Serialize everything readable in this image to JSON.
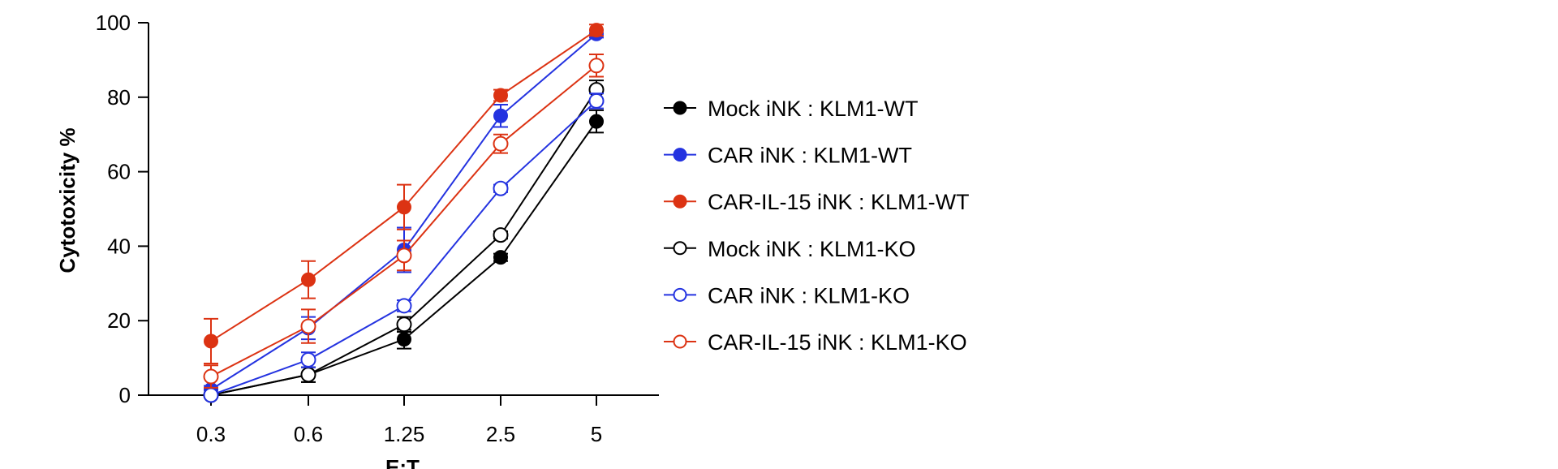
{
  "chart_data": {
    "type": "line",
    "xlabel": "E:T",
    "ylabel": "Cytotoxicity %",
    "categories": [
      "0.3",
      "0.6",
      "1.25",
      "2.5",
      "5"
    ],
    "ylim": [
      0,
      100
    ],
    "yticks": [
      0,
      20,
      40,
      60,
      80,
      100
    ],
    "grid": false,
    "legend_position": "right",
    "series": [
      {
        "name": "Mock iNK : KLM1-WT",
        "color": "#000000",
        "filled": true,
        "values": [
          0,
          5.5,
          15,
          37,
          73.5
        ],
        "errors": [
          0.5,
          2,
          2.5,
          1,
          3
        ]
      },
      {
        "name": "CAR iNK : KLM1-WT",
        "color": "#2433e0",
        "filled": true,
        "values": [
          1.5,
          18,
          39,
          75,
          97
        ],
        "errors": [
          1,
          3,
          6,
          3,
          1
        ]
      },
      {
        "name": "CAR-IL-15 iNK : KLM1-WT",
        "color": "#dc3313",
        "filled": true,
        "values": [
          14.5,
          31,
          50.5,
          80.5,
          98
        ],
        "errors": [
          6,
          5,
          6,
          1.5,
          1.5
        ]
      },
      {
        "name": "Mock iNK : KLM1-KO",
        "color": "#000000",
        "filled": false,
        "values": [
          0,
          5.5,
          19,
          43,
          82
        ],
        "errors": [
          0.5,
          2,
          2,
          1,
          2.5
        ]
      },
      {
        "name": "CAR iNK : KLM1-KO",
        "color": "#2433e0",
        "filled": false,
        "values": [
          0,
          9.5,
          24,
          55.5,
          79
        ],
        "errors": [
          0.5,
          2,
          1.5,
          1,
          2
        ]
      },
      {
        "name": "CAR-IL-15 iNK : KLM1-KO",
        "color": "#dc3313",
        "filled": false,
        "values": [
          5,
          18.5,
          37.5,
          67.5,
          88.5
        ],
        "errors": [
          3,
          4.5,
          4,
          2.5,
          3
        ]
      }
    ]
  }
}
